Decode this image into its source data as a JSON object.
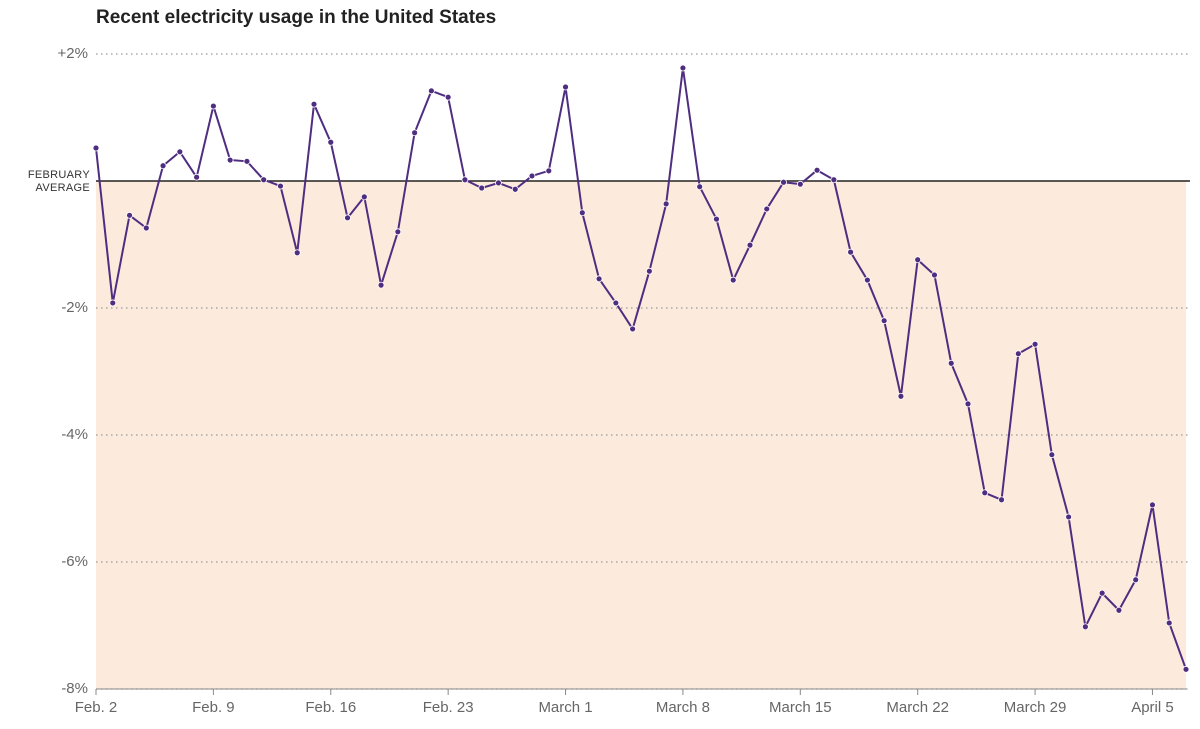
{
  "chart_data": {
    "type": "line",
    "title": "Recent electricity usage in the United States",
    "categories": [
      "Feb. 2",
      null,
      null,
      null,
      null,
      null,
      null,
      "Feb. 9",
      null,
      null,
      null,
      null,
      null,
      null,
      "Feb. 16",
      null,
      null,
      null,
      null,
      null,
      null,
      "Feb. 23",
      null,
      null,
      null,
      null,
      null,
      null,
      "March 1",
      null,
      null,
      null,
      null,
      null,
      null,
      "March 8",
      null,
      null,
      null,
      null,
      null,
      null,
      "March 15",
      null,
      null,
      null,
      null,
      null,
      null,
      "March 22",
      null,
      null,
      null,
      null,
      null,
      null,
      "March 29",
      null,
      null,
      null,
      null,
      null,
      null,
      "April 5",
      null,
      null
    ],
    "values": [
      0.52,
      -1.92,
      -0.54,
      -0.74,
      0.24,
      0.46,
      0.06,
      1.18,
      0.33,
      0.31,
      0.02,
      -0.08,
      -1.13,
      1.21,
      0.61,
      -0.58,
      -0.25,
      -1.64,
      -0.8,
      0.76,
      1.42,
      1.32,
      0.02,
      -0.11,
      -0.03,
      -0.13,
      0.08,
      0.16,
      1.48,
      -0.5,
      -1.54,
      -1.92,
      -2.33,
      -1.42,
      -0.36,
      1.78,
      -0.09,
      -0.6,
      -1.56,
      -1.01,
      -0.44,
      -0.02,
      -0.05,
      0.17,
      0.02,
      -1.12,
      -1.56,
      -2.2,
      -3.39,
      -1.24,
      -1.48,
      -2.87,
      -3.51,
      -4.91,
      -5.02,
      -2.72,
      -2.57,
      -4.31,
      -5.29,
      -7.02,
      -6.49,
      -6.76,
      -6.28,
      -5.1,
      -6.96,
      -7.69
    ],
    "color": "#4f2d80",
    "fill_color": "#fcebdc",
    "ylim": [
      -8,
      2
    ],
    "yticks": [
      {
        "value": 2,
        "label": "+2%"
      },
      {
        "value": -2,
        "label": "-2%"
      },
      {
        "value": -4,
        "label": "-4%"
      },
      {
        "value": -6,
        "label": "-6%"
      },
      {
        "value": -8,
        "label": "-8%"
      }
    ],
    "grid": true,
    "reference_line": {
      "value": 0,
      "label": "FEBRUARY AVERAGE"
    }
  }
}
